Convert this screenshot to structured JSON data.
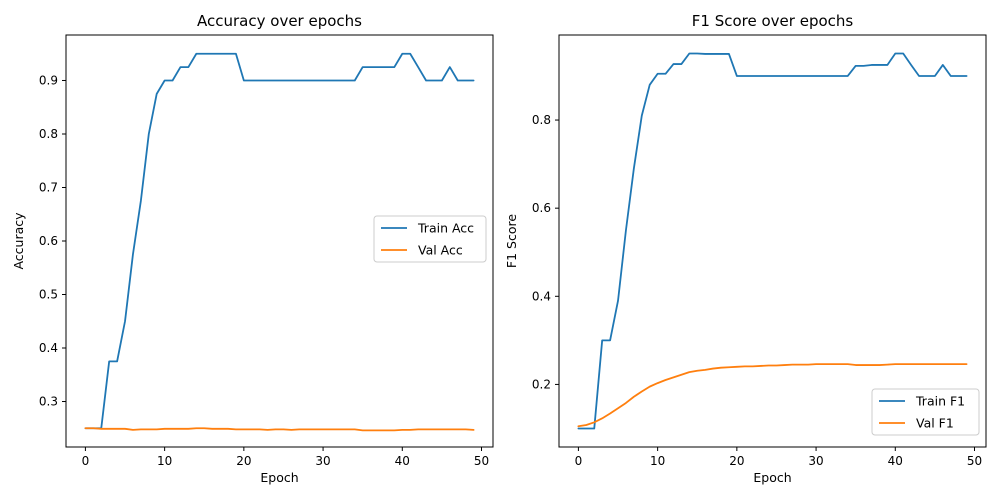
{
  "chart_data": [
    {
      "type": "line",
      "title": "Accuracy over epochs",
      "xlabel": "Epoch",
      "ylabel": "Accuracy",
      "xlim": [
        -2.45,
        51.45
      ],
      "ylim": [
        0.215,
        0.985
      ],
      "xticks": [
        0,
        10,
        20,
        30,
        40,
        50
      ],
      "yticks": [
        0.3,
        0.4,
        0.5,
        0.6,
        0.7,
        0.8,
        0.9
      ],
      "ytick_labels": [
        "0.3",
        "0.4",
        "0.5",
        "0.6",
        "0.7",
        "0.8",
        "0.9"
      ],
      "grid": false,
      "legend": "center right",
      "x": [
        0,
        1,
        2,
        3,
        4,
        5,
        6,
        7,
        8,
        9,
        10,
        11,
        12,
        13,
        14,
        15,
        16,
        17,
        18,
        19,
        20,
        21,
        22,
        23,
        24,
        25,
        26,
        27,
        28,
        29,
        30,
        31,
        32,
        33,
        34,
        35,
        36,
        37,
        38,
        39,
        40,
        41,
        42,
        43,
        44,
        45,
        46,
        47,
        48,
        49
      ],
      "series": [
        {
          "name": "Train Acc",
          "color": "#1f77b4",
          "values": [
            0.25,
            0.25,
            0.25,
            0.375,
            0.375,
            0.45,
            0.575,
            0.675,
            0.8,
            0.875,
            0.9,
            0.9,
            0.925,
            0.925,
            0.95,
            0.95,
            0.95,
            0.95,
            0.95,
            0.95,
            0.9,
            0.9,
            0.9,
            0.9,
            0.9,
            0.9,
            0.9,
            0.9,
            0.9,
            0.9,
            0.9,
            0.9,
            0.9,
            0.9,
            0.9,
            0.925,
            0.925,
            0.925,
            0.925,
            0.925,
            0.95,
            0.95,
            0.925,
            0.9,
            0.9,
            0.9,
            0.925,
            0.9,
            0.9,
            0.9
          ]
        },
        {
          "name": "Val Acc",
          "color": "#ff7f0e",
          "values": [
            0.25,
            0.25,
            0.249,
            0.249,
            0.249,
            0.249,
            0.247,
            0.248,
            0.248,
            0.248,
            0.249,
            0.249,
            0.249,
            0.249,
            0.25,
            0.25,
            0.249,
            0.249,
            0.249,
            0.248,
            0.248,
            0.248,
            0.248,
            0.247,
            0.248,
            0.248,
            0.247,
            0.248,
            0.248,
            0.248,
            0.248,
            0.248,
            0.248,
            0.248,
            0.248,
            0.246,
            0.246,
            0.246,
            0.246,
            0.246,
            0.247,
            0.247,
            0.248,
            0.248,
            0.248,
            0.248,
            0.248,
            0.248,
            0.248,
            0.247
          ]
        }
      ]
    },
    {
      "type": "line",
      "title": "F1 Score over epochs",
      "xlabel": "Epoch",
      "ylabel": "F1 Score",
      "xlim": [
        -2.45,
        51.45
      ],
      "ylim": [
        0.058,
        0.993
      ],
      "xticks": [
        0,
        10,
        20,
        30,
        40,
        50
      ],
      "yticks": [
        0.2,
        0.4,
        0.6,
        0.8
      ],
      "ytick_labels": [
        "0.2",
        "0.4",
        "0.6",
        "0.8"
      ],
      "grid": false,
      "legend": "lower right",
      "x": [
        0,
        1,
        2,
        3,
        4,
        5,
        6,
        7,
        8,
        9,
        10,
        11,
        12,
        13,
        14,
        15,
        16,
        17,
        18,
        19,
        20,
        21,
        22,
        23,
        24,
        25,
        26,
        27,
        28,
        29,
        30,
        31,
        32,
        33,
        34,
        35,
        36,
        37,
        38,
        39,
        40,
        41,
        42,
        43,
        44,
        45,
        46,
        47,
        48,
        49
      ],
      "series": [
        {
          "name": "Train F1",
          "color": "#1f77b4",
          "values": [
            0.1,
            0.1,
            0.1,
            0.3,
            0.3,
            0.39,
            0.55,
            0.69,
            0.81,
            0.88,
            0.905,
            0.905,
            0.927,
            0.927,
            0.951,
            0.951,
            0.95,
            0.95,
            0.95,
            0.95,
            0.9,
            0.9,
            0.9,
            0.9,
            0.9,
            0.9,
            0.9,
            0.9,
            0.9,
            0.9,
            0.9,
            0.9,
            0.9,
            0.9,
            0.9,
            0.923,
            0.923,
            0.925,
            0.925,
            0.925,
            0.951,
            0.951,
            0.925,
            0.9,
            0.9,
            0.9,
            0.925,
            0.9,
            0.9,
            0.9
          ]
        },
        {
          "name": "Val F1",
          "color": "#ff7f0e",
          "values": [
            0.105,
            0.108,
            0.114,
            0.123,
            0.134,
            0.146,
            0.158,
            0.172,
            0.184,
            0.195,
            0.203,
            0.21,
            0.216,
            0.222,
            0.228,
            0.231,
            0.233,
            0.236,
            0.238,
            0.239,
            0.24,
            0.241,
            0.241,
            0.242,
            0.243,
            0.243,
            0.244,
            0.245,
            0.245,
            0.245,
            0.246,
            0.246,
            0.246,
            0.246,
            0.246,
            0.244,
            0.244,
            0.244,
            0.244,
            0.245,
            0.246,
            0.246,
            0.246,
            0.246,
            0.246,
            0.246,
            0.246,
            0.246,
            0.246,
            0.246
          ]
        }
      ]
    }
  ]
}
